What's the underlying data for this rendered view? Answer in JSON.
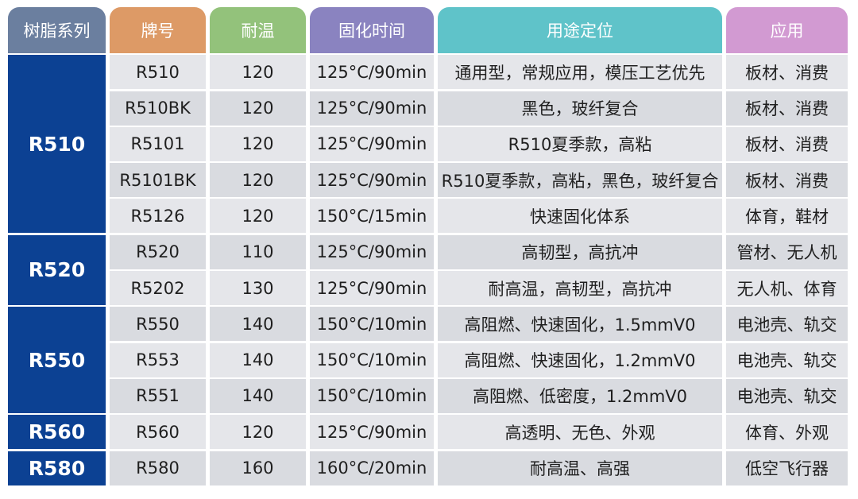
{
  "colors": {
    "hdr_series": "#6b7f9f",
    "hdr_grade": "#dd9a66",
    "hdr_temp": "#93c27b",
    "hdr_cure": "#8a83c0",
    "hdr_use": "#5fc3c9",
    "hdr_app": "#d29ad2",
    "series_bg": "#0c4193"
  },
  "headers": [
    "树脂系列",
    "牌号",
    "耐温",
    "固化时间",
    "用途定位",
    "应用"
  ],
  "series": [
    {
      "name": "R510",
      "span": 5
    },
    {
      "name": "R520",
      "span": 2
    },
    {
      "name": "R550",
      "span": 3
    },
    {
      "name": "R560",
      "span": 1
    },
    {
      "name": "R580",
      "span": 1
    }
  ],
  "rows": [
    {
      "grade": "R510",
      "temp": "120",
      "cure": "125°C/90min",
      "use": "通用型，常规应用，模压工艺优先",
      "app": "板材、消费"
    },
    {
      "grade": "R510BK",
      "temp": "120",
      "cure": "125°C/90min",
      "use": "黑色，玻纤复合",
      "app": "板材、消费"
    },
    {
      "grade": "R5101",
      "temp": "120",
      "cure": "125°C/90min",
      "use": "R510夏季款，高粘",
      "app": "板材、消费"
    },
    {
      "grade": "R5101BK",
      "temp": "120",
      "cure": "125°C/90min",
      "use": "R510夏季款，高粘，黑色，玻纤复合",
      "app": "板材、消费"
    },
    {
      "grade": "R5126",
      "temp": "120",
      "cure": "150°C/15min",
      "use": "快速固化体系",
      "app": "体育，鞋材"
    },
    {
      "grade": "R520",
      "temp": "110",
      "cure": "125°C/90min",
      "use": "高韧型，高抗冲",
      "app": "管材、无人机"
    },
    {
      "grade": "R5202",
      "temp": "130",
      "cure": "125°C/90min",
      "use": "耐高温，高韧型，高抗冲",
      "app": "无人机、体育"
    },
    {
      "grade": "R550",
      "temp": "140",
      "cure": "150°C/10min",
      "use": "高阻燃、快速固化，1.5mmV0",
      "app": "电池壳、轨交"
    },
    {
      "grade": "R553",
      "temp": "140",
      "cure": "150°C/10min",
      "use": "高阻燃、快速固化，1.2mmV0",
      "app": "电池壳、轨交"
    },
    {
      "grade": "R551",
      "temp": "140",
      "cure": "150°C/10min",
      "use": "高阻燃、低密度，1.2mmV0",
      "app": "电池壳、轨交"
    },
    {
      "grade": "R560",
      "temp": "120",
      "cure": "125°C/90min",
      "use": "高透明、无色、外观",
      "app": "体育、外观"
    },
    {
      "grade": "R580",
      "temp": "160",
      "cure": "160°C/20min",
      "use": "耐高温、高强",
      "app": "低空飞行器"
    }
  ]
}
